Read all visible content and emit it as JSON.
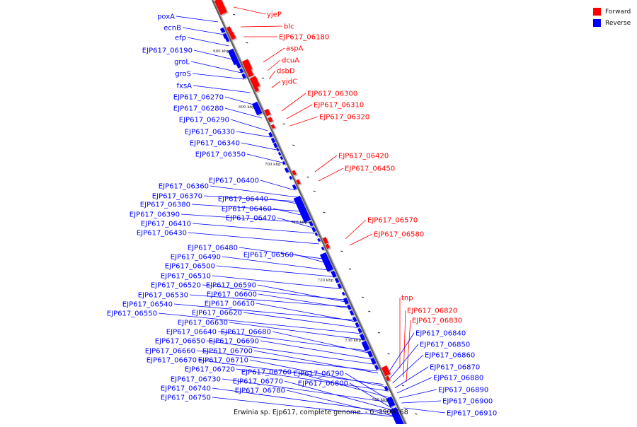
{
  "legend": {
    "forward": {
      "label": "Forward",
      "color": "#ff0000"
    },
    "reverse": {
      "label": "Reverse",
      "color": "#0000ff"
    }
  },
  "caption": "Erwinia sp. Ejp617, complete genome. - 0..3909168",
  "ticks": [
    "680 kbp",
    "690 kbp",
    "700 kbp",
    "710 kbp",
    "720 kbp",
    "730 kbp",
    "740 kbp"
  ],
  "forward_genes": [
    "yjeP",
    "blc",
    "EJP617_06180",
    "aspA",
    "dcuA",
    "dsbD",
    "yjdC",
    "EJP617_06300",
    "EJP617_06310",
    "EJP617_06320",
    "EJP617_06420",
    "EJP617_06450",
    "EJP617_06570",
    "EJP617_06580",
    "tnp",
    "EJP617_06820",
    "EJP617_06830"
  ],
  "reverse_genes": [
    "poxA",
    "ecnB",
    "efp",
    "EJP617_06190",
    "groL",
    "groS",
    "fxsA",
    "EJP617_06270",
    "EJP617_06280",
    "EJP617_06290",
    "EJP617_06330",
    "EJP617_06340",
    "EJP617_06350",
    "EJP617_06400",
    "EJP617_06360",
    "EJP617_06370",
    "EJP617_06380",
    "EJP617_06390",
    "EJP617_06410",
    "EJP617_06430",
    "EJP617_06440",
    "EJP617_06460",
    "EJP617_06470",
    "EJP617_06480",
    "EJP617_06490",
    "EJP617_06560",
    "EJP617_06500",
    "EJP617_06510",
    "EJP617_06520",
    "EJP617_06590",
    "EJP617_06530",
    "EJP617_06600",
    "EJP617_06540",
    "EJP617_06610",
    "EJP617_06550",
    "EJP617_06620",
    "EJP617_06630",
    "EJP617_06640",
    "EJP617_06680",
    "EJP617_06650",
    "EJP617_06690",
    "EJP617_06660",
    "EJP617_06700",
    "EJP617_06670",
    "EJP617_06710",
    "EJP617_06720",
    "EJP617_06730",
    "EJP617_06760",
    "EJP617_06790",
    "EJP617_06770",
    "EJP617_06740",
    "EJP617_06800",
    "EJP617_06780",
    "EJP617_06750"
  ],
  "right_reverse_genes": [
    "EJP617_06840",
    "EJP617_06850",
    "EJP617_06860",
    "EJP617_06870",
    "EJP617_06880",
    "EJP617_06890",
    "EJP617_06900",
    "EJP617_06910"
  ]
}
